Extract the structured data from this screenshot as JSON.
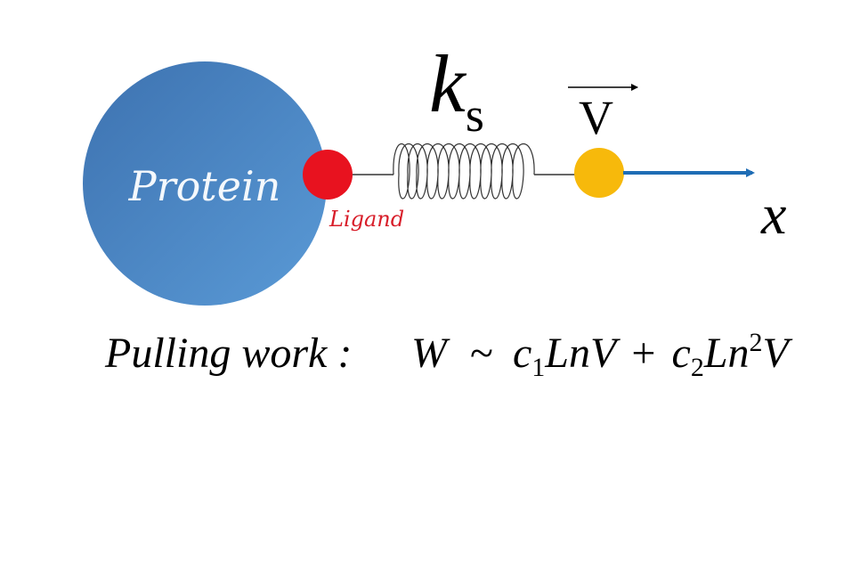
{
  "diagram": {
    "protein_label": "Protein",
    "ligand_label": "Ligand",
    "spring_constant": {
      "symbol": "k",
      "subscript": "s"
    },
    "velocity_label": "V",
    "axis_label": "x",
    "formula": {
      "prefix": "Pulling work :",
      "w": "W",
      "tilde": "~",
      "c": "c",
      "sub1": "1",
      "term1": "LnV",
      "plus": "+",
      "sub2": "2",
      "ln": "Ln",
      "exp": "2",
      "v": "V"
    },
    "colors": {
      "protein": "#4a86c3",
      "ligand": "#e8121f",
      "ligand_label": "#d81e2a",
      "pulling_bead": "#f7b90b",
      "arrow": "#1f6db5"
    }
  }
}
